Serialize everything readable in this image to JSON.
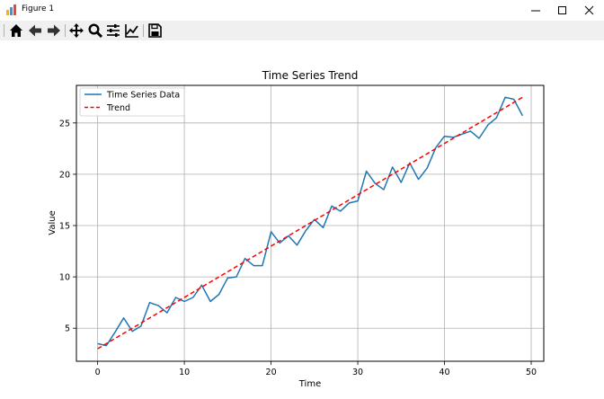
{
  "window": {
    "title": "Figure 1"
  },
  "toolbar": {
    "buttons": [
      {
        "name": "home-icon"
      },
      {
        "name": "back-icon"
      },
      {
        "name": "forward-icon"
      },
      {
        "name": "pan-icon"
      },
      {
        "name": "zoom-icon"
      },
      {
        "name": "subplots-icon"
      },
      {
        "name": "edit-axis-icon"
      },
      {
        "name": "save-icon"
      }
    ]
  },
  "colors": {
    "series": "#1f77b4",
    "trend": "#ff0000",
    "grid": "#b0b0b0"
  },
  "chart_data": {
    "type": "line",
    "title": "Time Series Trend",
    "xlabel": "Time",
    "ylabel": "Value",
    "xlim": [
      -2.45,
      51.45
    ],
    "ylim": [
      1.78,
      28.66
    ],
    "xticks": [
      0,
      10,
      20,
      30,
      40,
      50
    ],
    "yticks": [
      5,
      10,
      15,
      20,
      25
    ],
    "grid": true,
    "legend_position": "upper-left",
    "series": [
      {
        "name": "Time Series Data",
        "style": "solid",
        "x": [
          0,
          1,
          2,
          3,
          4,
          5,
          6,
          7,
          8,
          9,
          10,
          11,
          12,
          13,
          14,
          15,
          16,
          17,
          18,
          19,
          20,
          21,
          22,
          23,
          24,
          25,
          26,
          27,
          28,
          29,
          30,
          31,
          32,
          33,
          34,
          35,
          36,
          37,
          38,
          39,
          40,
          41,
          42,
          43,
          44,
          45,
          46,
          47,
          48,
          49
        ],
        "values": [
          3.5,
          3.3,
          4.6,
          6.0,
          4.7,
          5.2,
          7.5,
          7.2,
          6.5,
          8.0,
          7.6,
          8.0,
          9.2,
          7.6,
          8.3,
          9.9,
          10.0,
          11.8,
          11.1,
          11.1,
          14.4,
          13.3,
          14.0,
          13.1,
          14.5,
          15.6,
          14.8,
          16.9,
          16.4,
          17.2,
          17.4,
          20.3,
          19.1,
          18.5,
          20.7,
          19.2,
          21.1,
          19.5,
          20.6,
          22.6,
          23.7,
          23.6,
          23.9,
          24.2,
          23.5,
          24.8,
          25.5,
          27.5,
          27.3,
          25.7
        ]
      },
      {
        "name": "Trend",
        "style": "dashed",
        "x": [
          0,
          49
        ],
        "values": [
          3.0,
          27.5
        ]
      }
    ]
  }
}
